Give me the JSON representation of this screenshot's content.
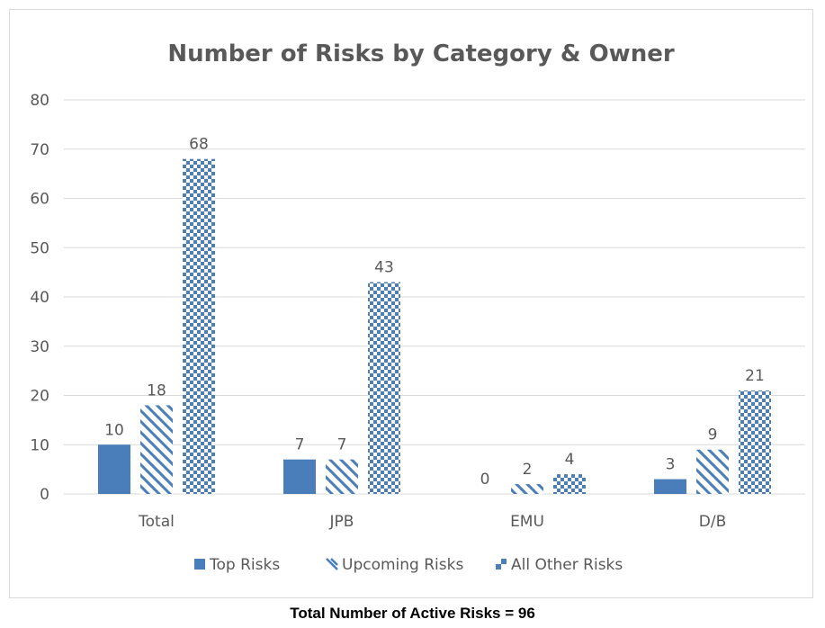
{
  "colors": {
    "series": "#4a7ebb",
    "axis_text": "#595959",
    "grid": "#d9d9d9",
    "title": "#595959"
  },
  "chart_data": {
    "type": "bar",
    "title": "Number of Risks by Category & Owner",
    "categories": [
      "Total",
      "JPB",
      "EMU",
      "D/B"
    ],
    "series": [
      {
        "name": "Top Risks",
        "values": [
          10,
          7,
          0,
          3
        ],
        "fill": "solid"
      },
      {
        "name": "Upcoming Risks",
        "values": [
          18,
          7,
          2,
          9
        ],
        "fill": "diagonal"
      },
      {
        "name": "All Other Risks",
        "values": [
          68,
          43,
          4,
          21
        ],
        "fill": "checker"
      }
    ],
    "ylim": [
      0,
      80
    ],
    "yticks": [
      0,
      10,
      20,
      30,
      40,
      50,
      60,
      70,
      80
    ],
    "grid": true,
    "legend": "bottom"
  },
  "footer": {
    "note": "Total Number of Active Risks = 96"
  }
}
